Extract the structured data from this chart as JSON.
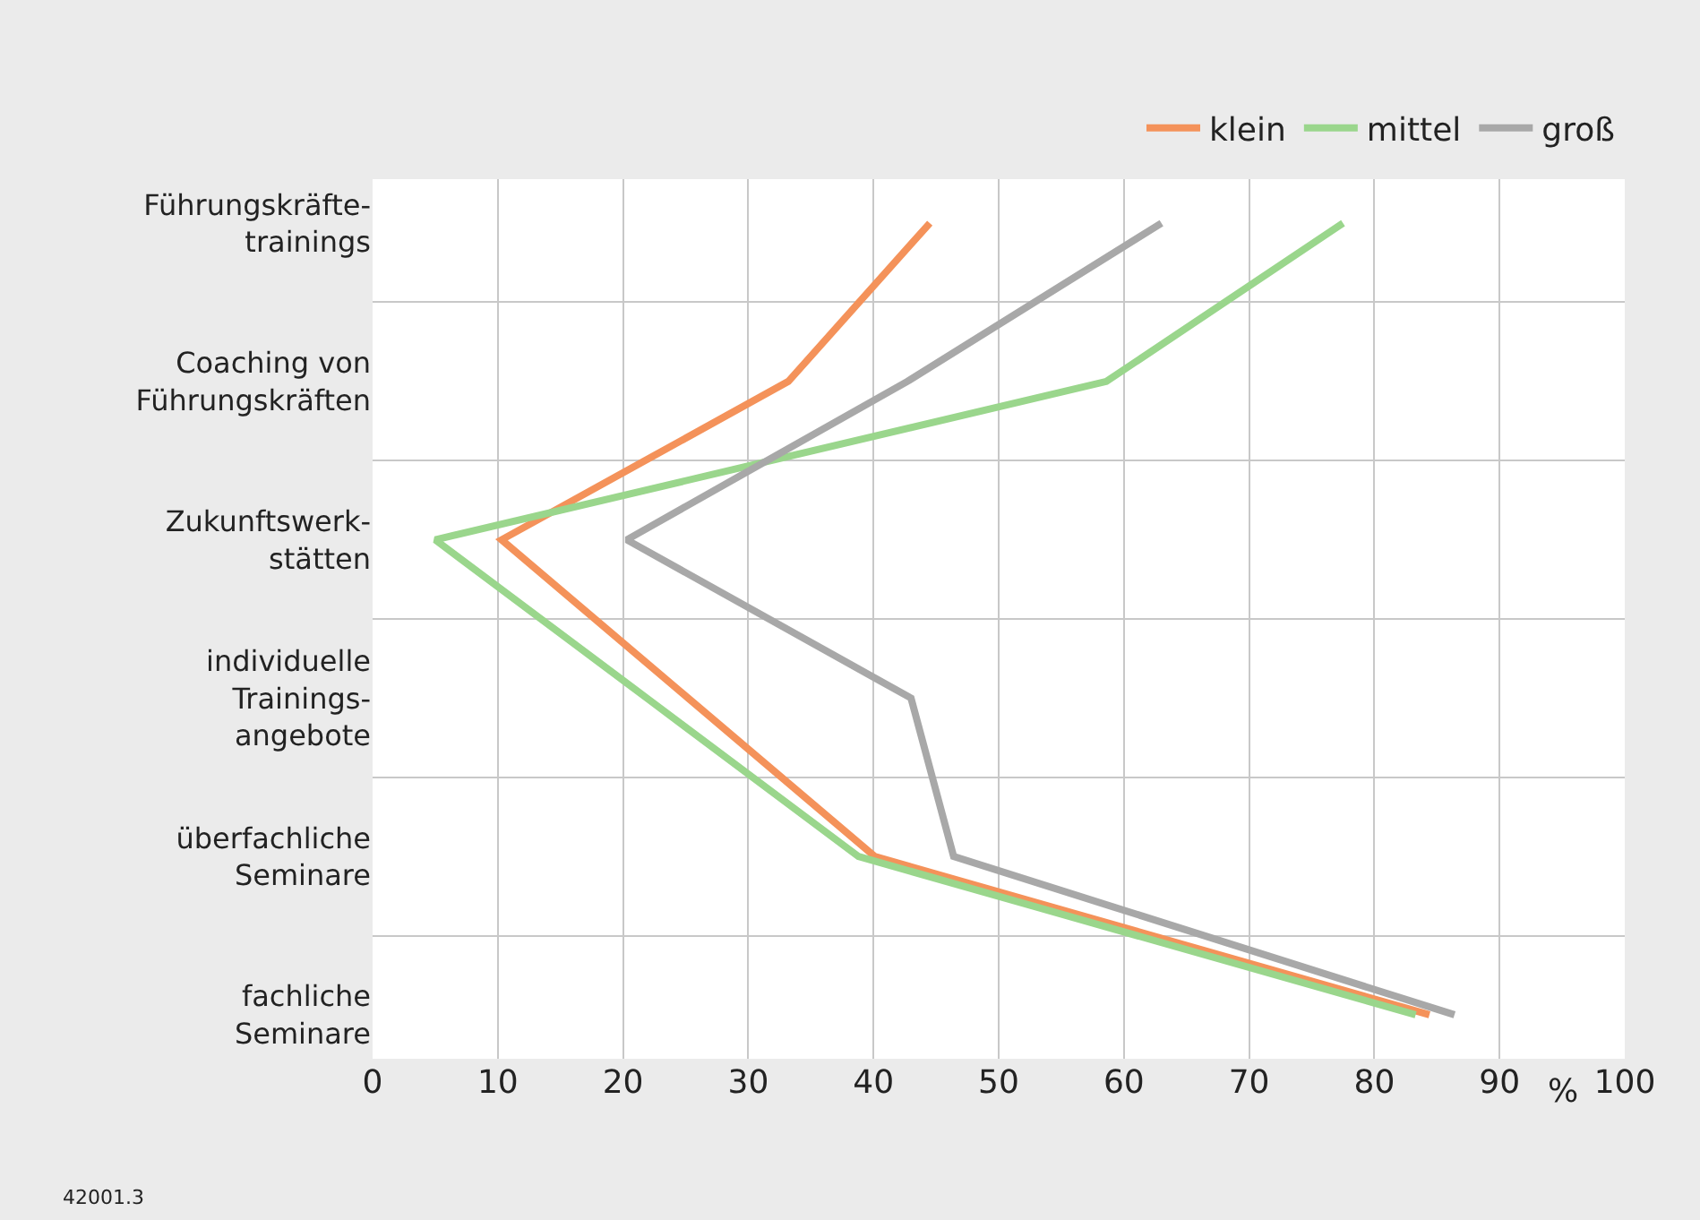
{
  "chart_data": {
    "type": "line",
    "orientation": "horizontal",
    "categories": [
      "Führungskräfte-\ntrainings",
      "Coaching von\nFührungskräften",
      "Zukunftswerk-\nstätten",
      "individuelle\nTrainings-\nangebote",
      "überfachliche\nSeminare",
      "fachliche\nSeminare"
    ],
    "series": [
      {
        "name": "klein",
        "color": "#f4925a",
        "values": [
          44.5,
          33.2,
          10.3,
          25.2,
          40.1,
          84.4
        ]
      },
      {
        "name": "mittel",
        "color": "#9ad68c",
        "values": [
          77.5,
          58.6,
          5,
          21.9,
          38.8,
          83.3
        ]
      },
      {
        "name": "groß",
        "color": "#a8a8a8",
        "values": [
          63,
          42.7,
          20.3,
          43,
          46.4,
          86.4
        ]
      }
    ],
    "xlim": [
      0,
      100
    ],
    "xticks": [
      0,
      10,
      20,
      30,
      40,
      50,
      60,
      70,
      80,
      90,
      100
    ],
    "xlabel": "%",
    "grid": true,
    "legend": "top right",
    "marker": "none",
    "line_style": "solid",
    "annotations": [
      "42001.3"
    ]
  }
}
